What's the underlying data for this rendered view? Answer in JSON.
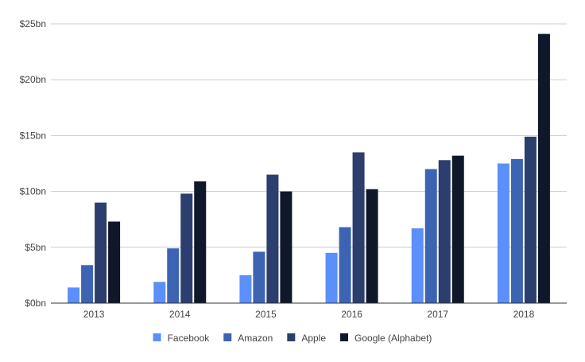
{
  "chart_data": {
    "type": "bar",
    "categories": [
      "2013",
      "2014",
      "2015",
      "2016",
      "2017",
      "2018"
    ],
    "series": [
      {
        "name": "Facebook",
        "color": "#5b8ff9",
        "values": [
          1.4,
          1.9,
          2.5,
          4.5,
          6.7,
          12.5
        ]
      },
      {
        "name": "Amazon",
        "color": "#3d64b3",
        "values": [
          3.4,
          4.9,
          4.6,
          6.8,
          12.0,
          12.9
        ]
      },
      {
        "name": "Apple",
        "color": "#2c3e6e",
        "values": [
          9.0,
          9.8,
          11.5,
          13.5,
          12.8,
          14.9
        ]
      },
      {
        "name": "Google (Alphabet)",
        "color": "#0f172a",
        "values": [
          7.3,
          10.9,
          10.0,
          10.2,
          13.2,
          24.1
        ]
      }
    ],
    "y_ticks": [
      "$0bn",
      "$5bn",
      "$10bn",
      "$15bn",
      "$20bn",
      "$25bn"
    ],
    "ylim": [
      0,
      25
    ],
    "grid": true,
    "legend_position": "bottom"
  }
}
